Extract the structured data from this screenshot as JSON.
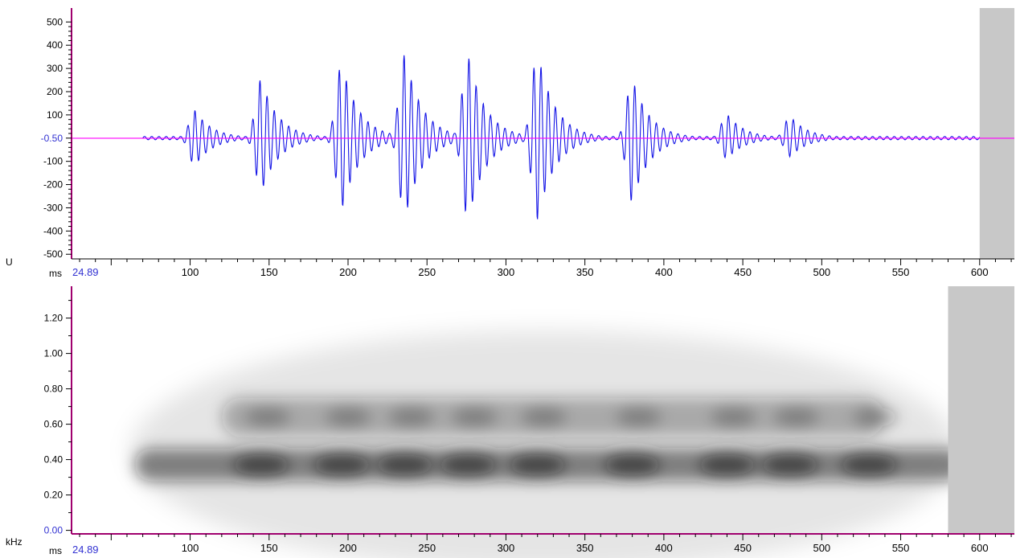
{
  "chart_data": [
    {
      "type": "line",
      "panel": "waveform",
      "ylabel": "U",
      "xlabel": "ms",
      "x_start_label": "24.89",
      "xlim": [
        24.89,
        622
      ],
      "ylim": [
        -520,
        560
      ],
      "x_ticks": [
        100,
        150,
        200,
        250,
        300,
        350,
        400,
        450,
        500,
        550,
        600
      ],
      "y_ticks": [
        500,
        400,
        300,
        200,
        100,
        -100,
        -200,
        -300,
        -400,
        -500
      ],
      "y_cursor_label": "-0.50",
      "baseline_value": -0.5,
      "grid": false,
      "signal_range_ms": [
        70,
        600
      ],
      "bursts": [
        {
          "center_ms": 103,
          "peak_pos": 120,
          "peak_neg": -120
        },
        {
          "center_ms": 145,
          "peak_pos": 255,
          "peak_neg": -235
        },
        {
          "center_ms": 196,
          "peak_pos": 325,
          "peak_neg": -310
        },
        {
          "center_ms": 236,
          "peak_pos": 360,
          "peak_neg": -350
        },
        {
          "center_ms": 276,
          "peak_pos": 360,
          "peak_neg": -355
        },
        {
          "center_ms": 320,
          "peak_pos": 375,
          "peak_neg": -350
        },
        {
          "center_ms": 380,
          "peak_pos": 260,
          "peak_neg": -275
        },
        {
          "center_ms": 440,
          "peak_pos": 105,
          "peak_neg": -90
        },
        {
          "center_ms": 480,
          "peak_pos": 95,
          "peak_neg": -80
        }
      ],
      "shaded_region_ms": [
        600,
        622
      ],
      "colors": {
        "signal": "#1414e6",
        "baseline": "#ff00ff",
        "axis": "#a0006e",
        "shade": "#c8c8c8",
        "cursor_label": "#3232d2"
      }
    },
    {
      "type": "heatmap",
      "panel": "spectrogram",
      "ylabel": "kHz",
      "xlabel": "ms",
      "x_start_label": "24.89",
      "xlim": [
        24.89,
        622
      ],
      "ylim": [
        -0.02,
        1.38
      ],
      "x_ticks": [
        100,
        150,
        200,
        250,
        300,
        350,
        400,
        450,
        500,
        550,
        600
      ],
      "y_ticks": [
        1.2,
        1.0,
        0.8,
        0.6,
        0.4,
        0.2
      ],
      "y_zero_label": "0.00",
      "grid": false,
      "bands": [
        {
          "name_hidden": "",
          "freq_khz": 0.37,
          "ms_range": [
            65,
            590
          ],
          "intensity": 0.9
        },
        {
          "freq_khz": 0.64,
          "ms_range": [
            120,
            540
          ],
          "intensity": 0.55
        }
      ],
      "energy_blobs_ms": [
        145,
        196,
        236,
        276,
        320,
        380,
        440,
        480,
        530
      ],
      "shaded_region_ms": [
        580,
        622
      ],
      "colors": {
        "axis": "#a0006e",
        "shade": "#c8c8c8",
        "energy": "#1a1a1a",
        "zero_label": "#3232d2"
      }
    }
  ]
}
